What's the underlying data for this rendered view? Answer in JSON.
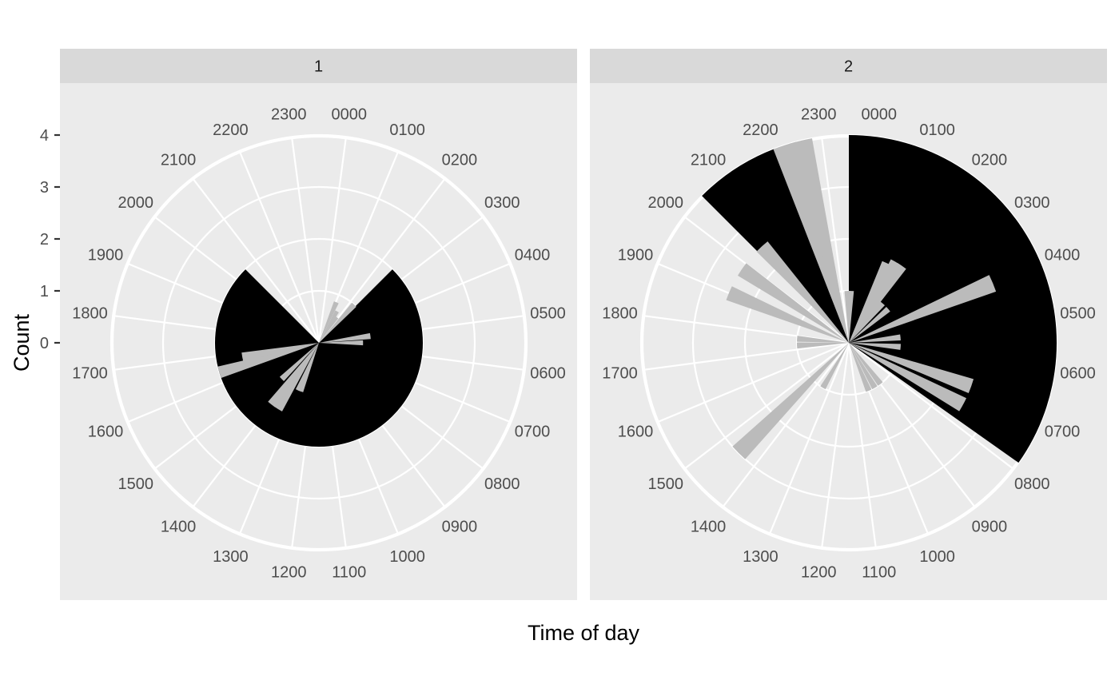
{
  "chart_data": {
    "type": "polar-histogram",
    "xlabel": "Time of day",
    "ylabel": "Count",
    "ylim": [
      0,
      4
    ],
    "y_ticks": [
      "0",
      "1",
      "2",
      "3",
      "4"
    ],
    "hour_labels": [
      "0000",
      "0100",
      "0200",
      "0300",
      "0400",
      "0500",
      "0600",
      "0700",
      "0800",
      "0900",
      "1000",
      "1100",
      "1200",
      "1300",
      "1400",
      "1500",
      "1600",
      "1700",
      "1800",
      "1900",
      "2000",
      "2100",
      "2200",
      "2300"
    ],
    "colors": {
      "panel_bg": "#ebebeb",
      "strip_bg": "#d9d9d9",
      "grid": "#ffffff",
      "wedge_black": "#000000",
      "wedge_grey": "#bbbbbb"
    },
    "panels": [
      {
        "label": "1",
        "black_wedges": [
          {
            "start_hour": 3.0,
            "end_hour": 21.0,
            "radius": 2.0
          }
        ],
        "grey_bars": [
          {
            "hour": 1.55,
            "value": 0.85
          },
          {
            "hour": 2.0,
            "value": 0.7
          },
          {
            "hour": 2.35,
            "value": 0.6
          },
          {
            "hour": 2.85,
            "value": 1.0
          },
          {
            "hour": 5.5,
            "value": 1.0
          },
          {
            "hour": 6.0,
            "value": 0.85
          },
          {
            "hour": 13.4,
            "value": 1.0
          },
          {
            "hour": 13.55,
            "value": 1.0
          },
          {
            "hour": 14.1,
            "value": 1.5
          },
          {
            "hour": 14.5,
            "value": 1.5
          },
          {
            "hour": 15.05,
            "value": 1.0
          },
          {
            "hour": 16.9,
            "value": 2.0
          },
          {
            "hour": 17.3,
            "value": 1.5
          }
        ]
      },
      {
        "label": "2",
        "black_wedges": [
          {
            "start_hour": 0.0,
            "end_hour": 8.35,
            "radius": 4.0
          },
          {
            "start_hour": 21.0,
            "end_hour": 22.6,
            "radius": 4.0
          }
        ],
        "grey_bars": [
          {
            "hour": 0.15,
            "value": 1.0
          },
          {
            "hour": 1.7,
            "value": 1.7
          },
          {
            "hour": 2.0,
            "value": 1.8
          },
          {
            "hour": 2.3,
            "value": 1.8
          },
          {
            "hour": 2.7,
            "value": 1.0
          },
          {
            "hour": 3.3,
            "value": 1.0
          },
          {
            "hour": 4.5,
            "value": 3.0
          },
          {
            "hour": 5.6,
            "value": 1.0
          },
          {
            "hour": 6.3,
            "value": 1.0
          },
          {
            "hour": 7.3,
            "value": 2.5
          },
          {
            "hour": 7.9,
            "value": 2.5
          },
          {
            "hour": 9.5,
            "value": 1.0
          },
          {
            "hour": 10.0,
            "value": 1.0
          },
          {
            "hour": 10.5,
            "value": 1.0
          },
          {
            "hour": 14.0,
            "value": 1.0
          },
          {
            "hour": 15.0,
            "value": 3.0
          },
          {
            "hour": 17.8,
            "value": 1.0
          },
          {
            "hour": 18.3,
            "value": 1.0
          },
          {
            "hour": 19.5,
            "value": 2.5
          },
          {
            "hour": 20.3,
            "value": 2.5
          },
          {
            "hour": 21.2,
            "value": 2.5
          },
          {
            "hour": 22.8,
            "value": 4.0
          },
          {
            "hour": 23.1,
            "value": 4.0
          },
          {
            "hour": 23.9,
            "value": 1.0
          }
        ]
      }
    ]
  }
}
